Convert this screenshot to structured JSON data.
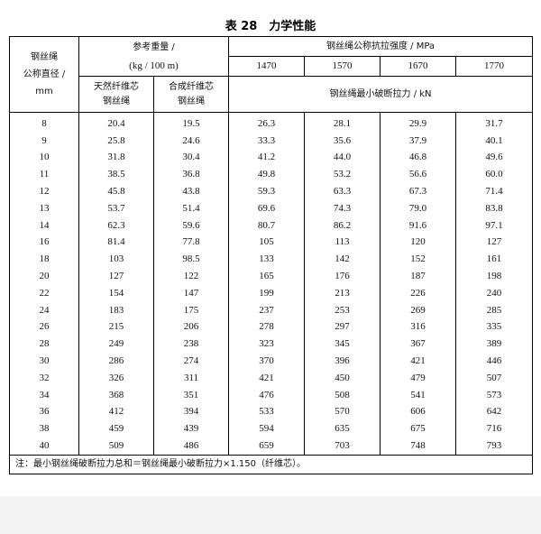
{
  "title": "表 28　力学性能",
  "header": {
    "diameter": [
      "钢丝绳",
      "公称直径 /",
      "mm"
    ],
    "weight": [
      "参考重量 /",
      "(kg / 100 m)"
    ],
    "strength": "钢丝绳公称抗拉强度 / MPa",
    "grades": [
      "1470",
      "1570",
      "1670",
      "1770"
    ],
    "natural_core": [
      "天然纤维芯",
      "钢丝绳"
    ],
    "synthetic_core": [
      "合成纤维芯",
      "钢丝绳"
    ],
    "breaking_force": "钢丝绳最小破断拉力 / kN"
  },
  "table": {
    "rows": [
      [
        "8",
        "20.4",
        "19.5",
        "26.3",
        "28.1",
        "29.9",
        "31.7"
      ],
      [
        "9",
        "25.8",
        "24.6",
        "33.3",
        "35.6",
        "37.9",
        "40.1"
      ],
      [
        "10",
        "31.8",
        "30.4",
        "41.2",
        "44.0",
        "46.8",
        "49.6"
      ],
      [
        "11",
        "38.5",
        "36.8",
        "49.8",
        "53.2",
        "56.6",
        "60.0"
      ],
      [
        "12",
        "45.8",
        "43.8",
        "59.3",
        "63.3",
        "67.3",
        "71.4"
      ],
      [
        "13",
        "53.7",
        "51.4",
        "69.6",
        "74.3",
        "79.0",
        "83.8"
      ],
      [
        "14",
        "62.3",
        "59.6",
        "80.7",
        "86.2",
        "91.6",
        "97.1"
      ],
      [
        "16",
        "81.4",
        "77.8",
        "105",
        "113",
        "120",
        "127"
      ],
      [
        "18",
        "103",
        "98.5",
        "133",
        "142",
        "152",
        "161"
      ],
      [
        "20",
        "127",
        "122",
        "165",
        "176",
        "187",
        "198"
      ],
      [
        "22",
        "154",
        "147",
        "199",
        "213",
        "226",
        "240"
      ],
      [
        "24",
        "183",
        "175",
        "237",
        "253",
        "269",
        "285"
      ],
      [
        "26",
        "215",
        "206",
        "278",
        "297",
        "316",
        "335"
      ],
      [
        "28",
        "249",
        "238",
        "323",
        "345",
        "367",
        "389"
      ],
      [
        "30",
        "286",
        "274",
        "370",
        "396",
        "421",
        "446"
      ],
      [
        "32",
        "326",
        "311",
        "421",
        "450",
        "479",
        "507"
      ],
      [
        "34",
        "368",
        "351",
        "476",
        "508",
        "541",
        "573"
      ],
      [
        "36",
        "412",
        "394",
        "533",
        "570",
        "606",
        "642"
      ],
      [
        "38",
        "459",
        "439",
        "594",
        "635",
        "675",
        "716"
      ],
      [
        "40",
        "509",
        "486",
        "659",
        "703",
        "748",
        "793"
      ]
    ]
  },
  "note": "注：最小钢丝绳破断拉力总和＝钢丝绳最小破断拉力×1.150（纤维芯）。"
}
